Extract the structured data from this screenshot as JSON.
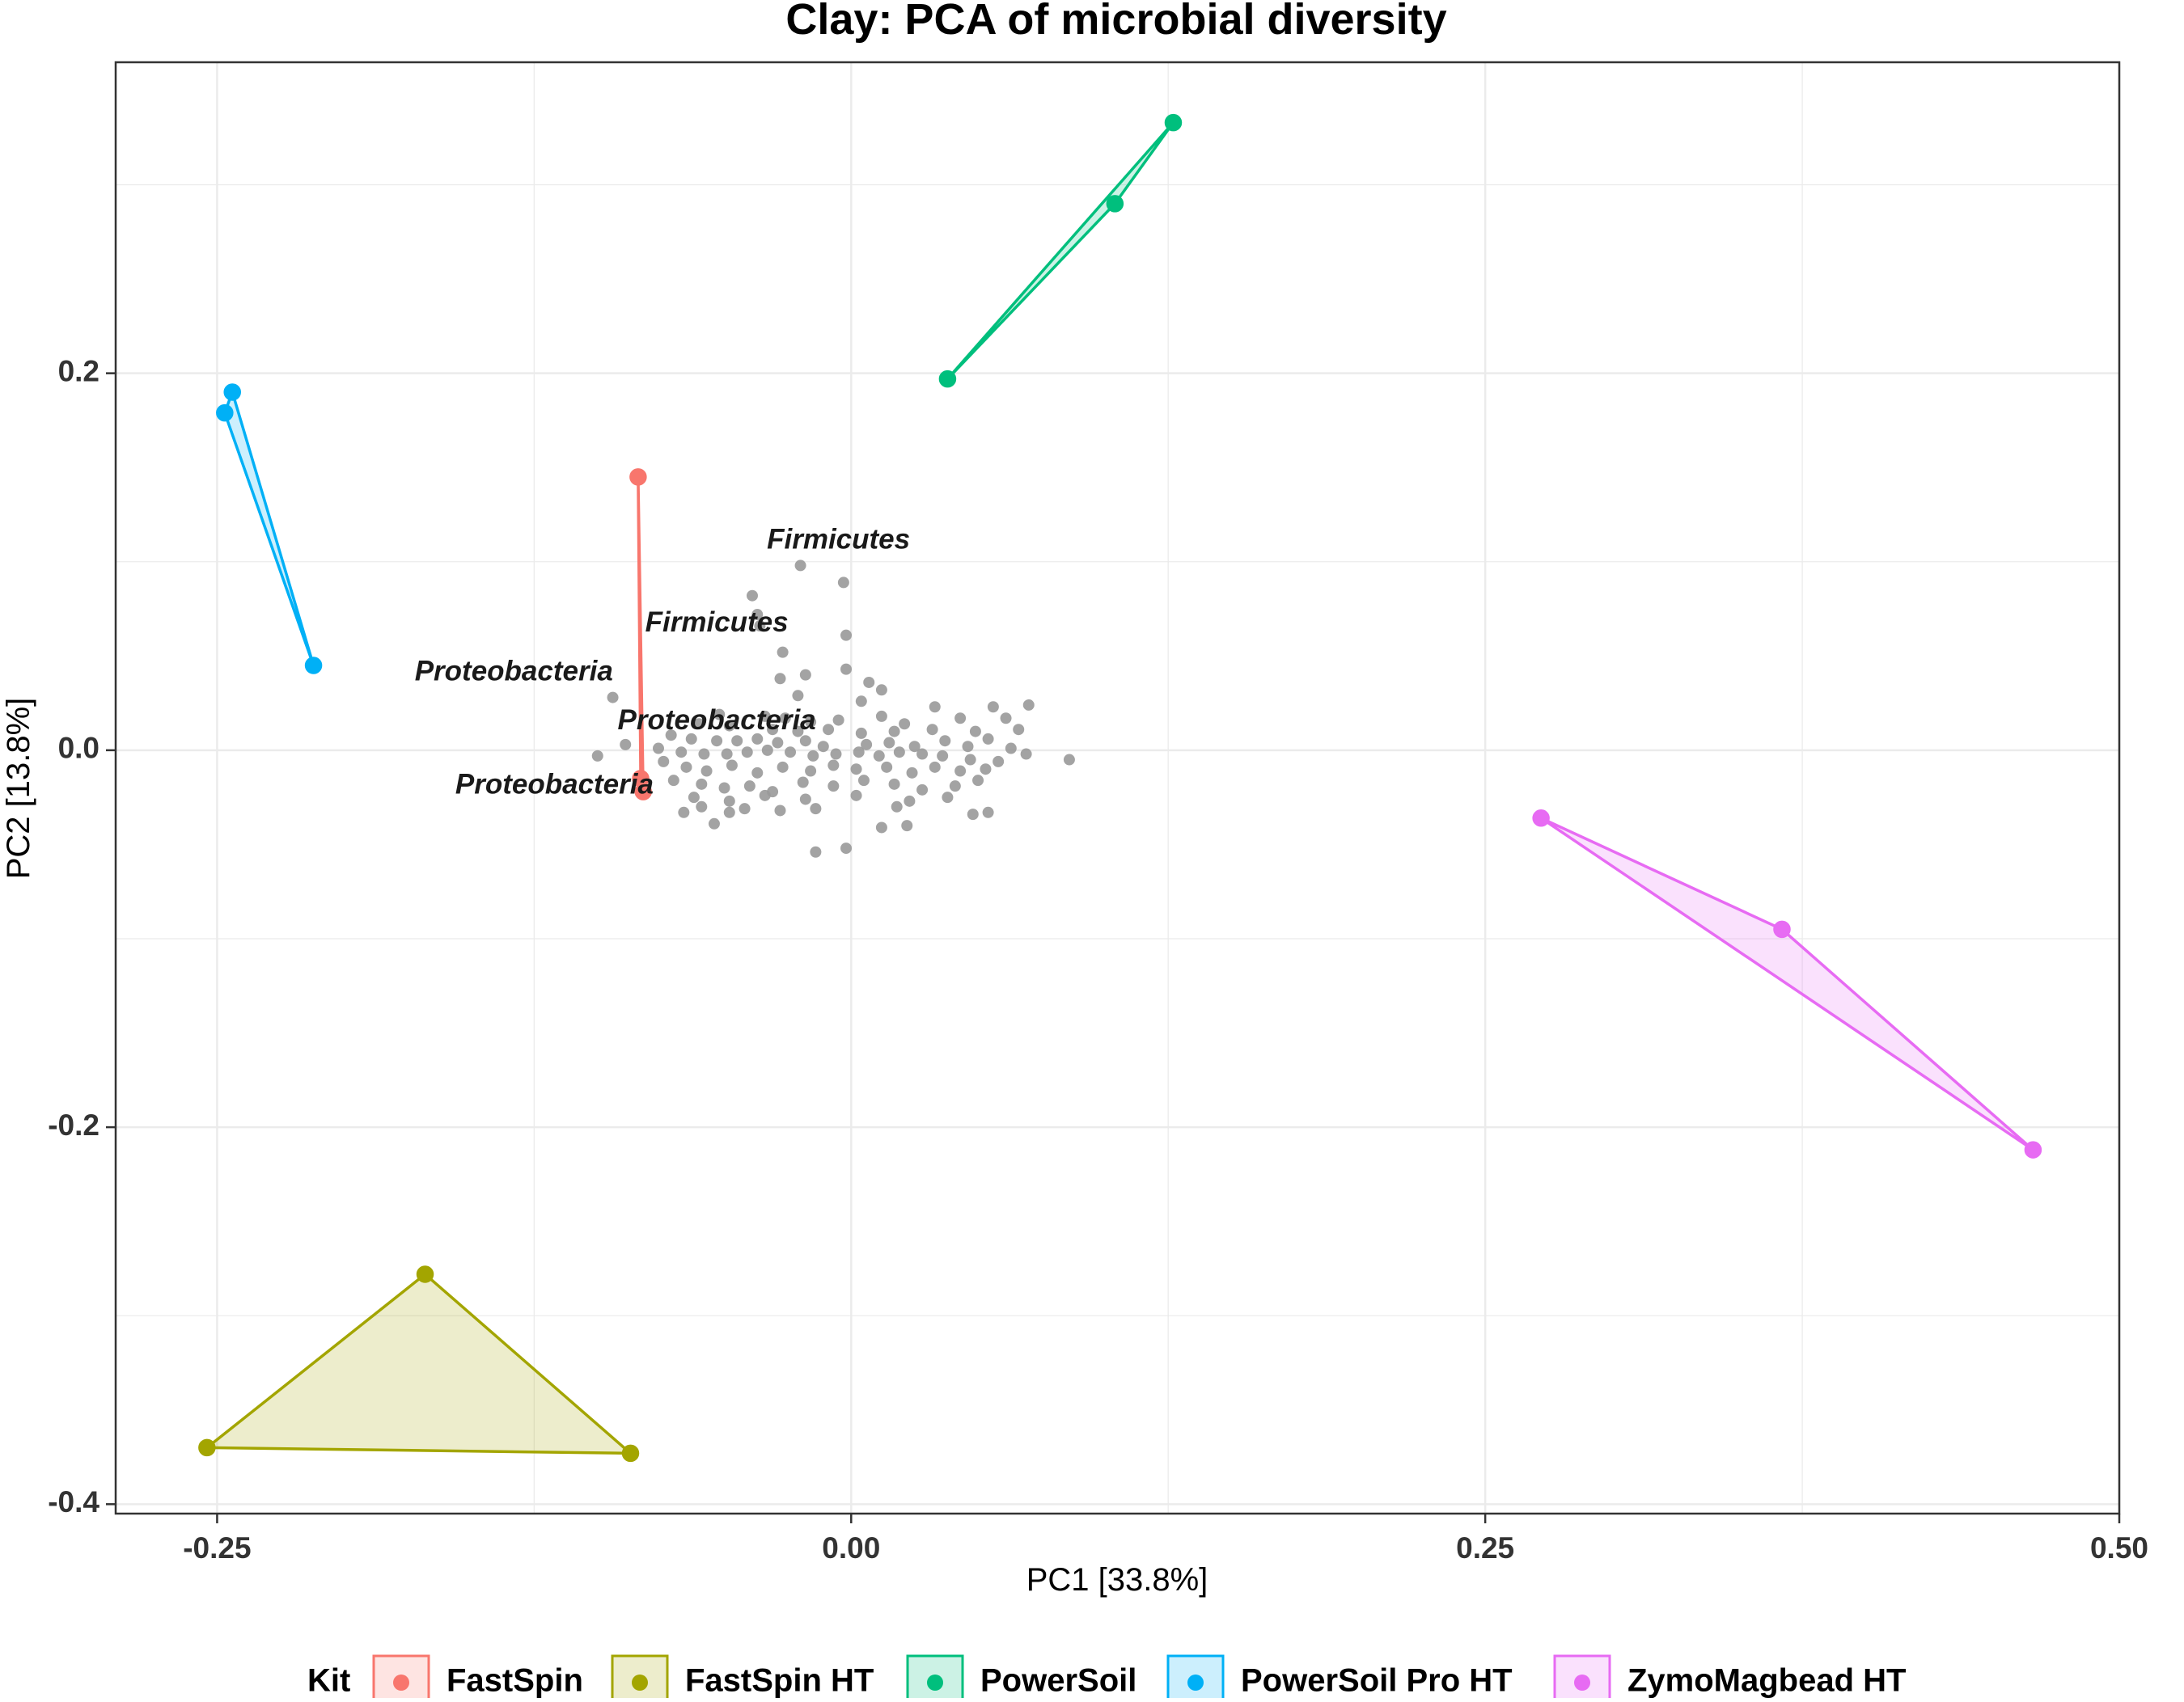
{
  "chart_data": {
    "type": "scatter",
    "title": "Clay: PCA of microbial diversity",
    "xlabel": "PC1 [33.8%]",
    "ylabel": "PC2 [13.8%]",
    "xlim": [
      -0.29,
      0.5
    ],
    "ylim": [
      -0.405,
      0.365
    ],
    "x_ticks": [
      -0.25,
      0.0,
      0.25,
      0.5
    ],
    "x_tick_labels": [
      "-0.25",
      "0.00",
      "0.25",
      "0.50"
    ],
    "y_ticks": [
      -0.4,
      -0.2,
      0.0,
      0.2
    ],
    "y_tick_labels": [
      "-0.4",
      "-0.2",
      "0.0",
      "0.2"
    ],
    "grid": true,
    "legend": {
      "title": "Kit",
      "position": "bottom",
      "entries": [
        "FastSpin",
        "FastSpin HT",
        "PowerSoil",
        "PowerSoil Pro HT",
        "ZymoMagbead HT"
      ]
    },
    "series": [
      {
        "name": "FastSpin",
        "color": "#F8766D",
        "fill_opacity": 0.2,
        "points": [
          [
            -0.084,
            0.145
          ],
          [
            -0.082,
            -0.022
          ],
          [
            -0.083,
            -0.015
          ]
        ]
      },
      {
        "name": "FastSpin HT",
        "color": "#A3A500",
        "fill_opacity": 0.2,
        "points": [
          [
            -0.254,
            -0.37
          ],
          [
            -0.168,
            -0.278
          ],
          [
            -0.087,
            -0.373
          ]
        ]
      },
      {
        "name": "PowerSoil",
        "color": "#00BF7D",
        "fill_opacity": 0.2,
        "points": [
          [
            0.038,
            0.197
          ],
          [
            0.104,
            0.29
          ],
          [
            0.127,
            0.333
          ]
        ]
      },
      {
        "name": "PowerSoil Pro HT",
        "color": "#00B0F6",
        "fill_opacity": 0.2,
        "points": [
          [
            -0.247,
            0.179
          ],
          [
            -0.244,
            0.19
          ],
          [
            -0.212,
            0.045
          ]
        ]
      },
      {
        "name": "ZymoMagbead HT",
        "color": "#E76BF3",
        "fill_opacity": 0.2,
        "points": [
          [
            0.272,
            -0.036
          ],
          [
            0.367,
            -0.095
          ],
          [
            0.466,
            -0.212
          ]
        ]
      }
    ],
    "loadings": {
      "color": "#999999",
      "points": [
        [
          -0.02,
          0.098
        ],
        [
          -0.003,
          0.089
        ],
        [
          -0.039,
          0.082
        ],
        [
          -0.037,
          0.072
        ],
        [
          -0.036,
          0.066
        ],
        [
          -0.002,
          0.061
        ],
        [
          -0.027,
          0.052
        ],
        [
          -0.028,
          0.038
        ],
        [
          -0.018,
          0.04
        ],
        [
          -0.002,
          0.043
        ],
        [
          -0.094,
          0.028
        ],
        [
          0.007,
          0.036
        ],
        [
          0.012,
          0.032
        ],
        [
          -0.021,
          0.029
        ],
        [
          0.004,
          0.026
        ],
        [
          0.033,
          0.023
        ],
        [
          0.056,
          0.023
        ],
        [
          0.07,
          0.024
        ],
        [
          -0.052,
          0.019
        ],
        [
          -0.034,
          0.018
        ],
        [
          -0.026,
          0.017
        ],
        [
          -0.016,
          0.015
        ],
        [
          -0.005,
          0.016
        ],
        [
          0.012,
          0.018
        ],
        [
          0.021,
          0.014
        ],
        [
          0.043,
          0.017
        ],
        [
          0.061,
          0.017
        ],
        [
          -0.06,
          0.014
        ],
        [
          -0.048,
          0.013
        ],
        [
          -0.031,
          0.011
        ],
        [
          -0.021,
          0.01
        ],
        [
          -0.009,
          0.011
        ],
        [
          0.004,
          0.009
        ],
        [
          0.017,
          0.01
        ],
        [
          0.032,
          0.011
        ],
        [
          0.049,
          0.01
        ],
        [
          0.066,
          0.011
        ],
        [
          -0.071,
          0.008
        ],
        [
          -0.063,
          0.006
        ],
        [
          -0.053,
          0.005
        ],
        [
          -0.045,
          0.005
        ],
        [
          -0.037,
          0.006
        ],
        [
          -0.029,
          0.004
        ],
        [
          -0.018,
          0.005
        ],
        [
          -0.011,
          0.002
        ],
        [
          0.006,
          0.003
        ],
        [
          0.015,
          0.004
        ],
        [
          0.025,
          0.002
        ],
        [
          0.037,
          0.005
        ],
        [
          0.046,
          0.002
        ],
        [
          0.054,
          0.006
        ],
        [
          0.063,
          0.001
        ],
        [
          -0.089,
          0.003
        ],
        [
          -0.076,
          0.001
        ],
        [
          -0.067,
          -0.001
        ],
        [
          -0.058,
          -0.002
        ],
        [
          -0.049,
          -0.002
        ],
        [
          -0.041,
          -0.001
        ],
        [
          -0.033,
          0.0
        ],
        [
          -0.024,
          -0.001
        ],
        [
          -0.015,
          -0.003
        ],
        [
          -0.006,
          -0.002
        ],
        [
          0.003,
          -0.001
        ],
        [
          0.011,
          -0.003
        ],
        [
          0.019,
          -0.001
        ],
        [
          0.028,
          -0.002
        ],
        [
          0.036,
          -0.003
        ],
        [
          0.047,
          -0.005
        ],
        [
          0.058,
          -0.006
        ],
        [
          0.069,
          -0.002
        ],
        [
          0.086,
          -0.005
        ],
        [
          -0.1,
          -0.003
        ],
        [
          -0.074,
          -0.006
        ],
        [
          -0.065,
          -0.009
        ],
        [
          -0.057,
          -0.011
        ],
        [
          -0.047,
          -0.008
        ],
        [
          -0.037,
          -0.012
        ],
        [
          -0.027,
          -0.009
        ],
        [
          -0.016,
          -0.011
        ],
        [
          -0.007,
          -0.008
        ],
        [
          0.002,
          -0.01
        ],
        [
          0.014,
          -0.009
        ],
        [
          0.024,
          -0.012
        ],
        [
          0.033,
          -0.009
        ],
        [
          0.043,
          -0.011
        ],
        [
          0.053,
          -0.01
        ],
        [
          -0.07,
          -0.016
        ],
        [
          -0.059,
          -0.018
        ],
        [
          -0.05,
          -0.02
        ],
        [
          -0.04,
          -0.019
        ],
        [
          -0.031,
          -0.022
        ],
        [
          -0.019,
          -0.017
        ],
        [
          -0.007,
          -0.019
        ],
        [
          0.005,
          -0.016
        ],
        [
          0.017,
          -0.018
        ],
        [
          0.028,
          -0.021
        ],
        [
          0.041,
          -0.019
        ],
        [
          0.05,
          -0.016
        ],
        [
          -0.062,
          -0.025
        ],
        [
          -0.048,
          -0.027
        ],
        [
          -0.034,
          -0.024
        ],
        [
          -0.018,
          -0.026
        ],
        [
          0.002,
          -0.024
        ],
        [
          0.023,
          -0.027
        ],
        [
          0.038,
          -0.025
        ],
        [
          -0.059,
          -0.03
        ],
        [
          -0.066,
          -0.033
        ],
        [
          -0.048,
          -0.033
        ],
        [
          -0.042,
          -0.031
        ],
        [
          -0.028,
          -0.032
        ],
        [
          -0.014,
          -0.031
        ],
        [
          0.018,
          -0.03
        ],
        [
          0.048,
          -0.034
        ],
        [
          0.054,
          -0.033
        ],
        [
          -0.054,
          -0.039
        ],
        [
          0.012,
          -0.041
        ],
        [
          0.022,
          -0.04
        ],
        [
          -0.014,
          -0.054
        ],
        [
          -0.002,
          -0.052
        ]
      ]
    },
    "annotations": [
      {
        "text": "Firmicutes",
        "x": -0.005,
        "y": 0.111
      },
      {
        "text": "Firmicutes",
        "x": -0.053,
        "y": 0.067
      },
      {
        "text": "Proteobacteria",
        "x": -0.133,
        "y": 0.041
      },
      {
        "text": "Proteobacteria",
        "x": -0.053,
        "y": 0.015
      },
      {
        "text": "Proteobacteria",
        "x": -0.117,
        "y": -0.019
      }
    ]
  }
}
